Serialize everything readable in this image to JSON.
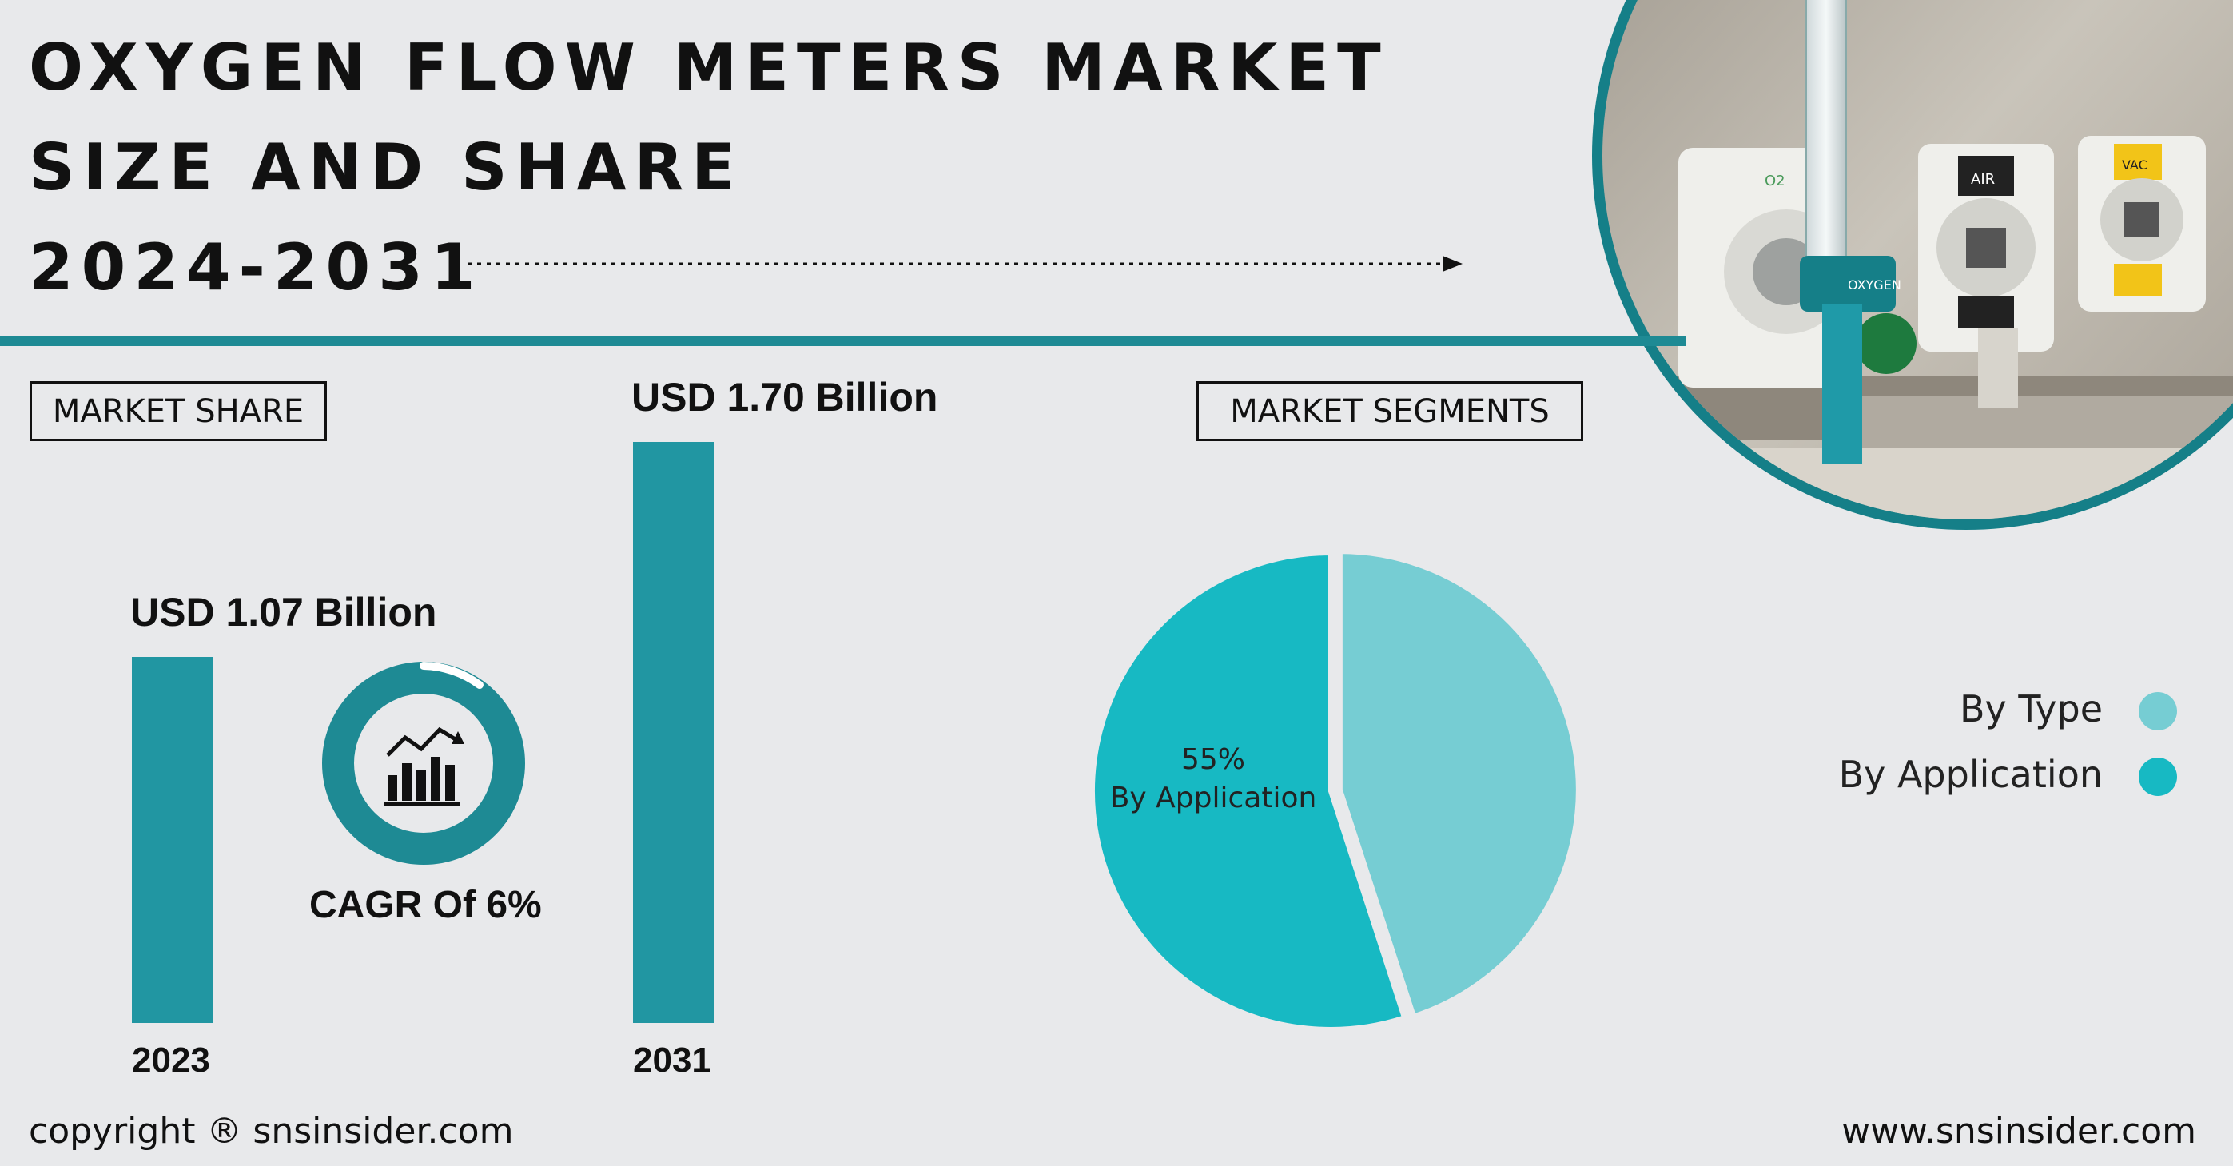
{
  "title": {
    "line1": "OXYGEN FLOW METERS MARKET",
    "line2": "SIZE AND SHARE",
    "line3": "2024-2031"
  },
  "market_share_label": "MARKET SHARE",
  "market_segments_label": "MARKET SEGMENTS",
  "cagr_label": "CAGR Of 6%",
  "photo": {
    "labels": [
      "OXYGEN",
      "AIR",
      "VAC",
      "O2"
    ]
  },
  "colors": {
    "accent": "#1e8a94",
    "bar": "#2196a2",
    "by_type": "#76cdd3",
    "by_application": "#17b9c3",
    "background": "#e8e9eb"
  },
  "chart_data": [
    {
      "type": "bar",
      "categories": [
        "2023",
        "2031"
      ],
      "values": [
        1.07,
        1.7
      ],
      "value_labels": [
        "USD 1.07 Billion",
        "USD 1.70 Billion"
      ],
      "unit": "USD Billion"
    },
    {
      "type": "pie",
      "labels": [
        "By Type",
        "By Application"
      ],
      "values": [
        45,
        55
      ],
      "slice_label": {
        "value": "55%",
        "name": "By Application"
      },
      "legend_position": "right"
    }
  ],
  "footer": {
    "copyright": "copyright ® snsinsider.com",
    "website": "www.snsinsider.com"
  }
}
